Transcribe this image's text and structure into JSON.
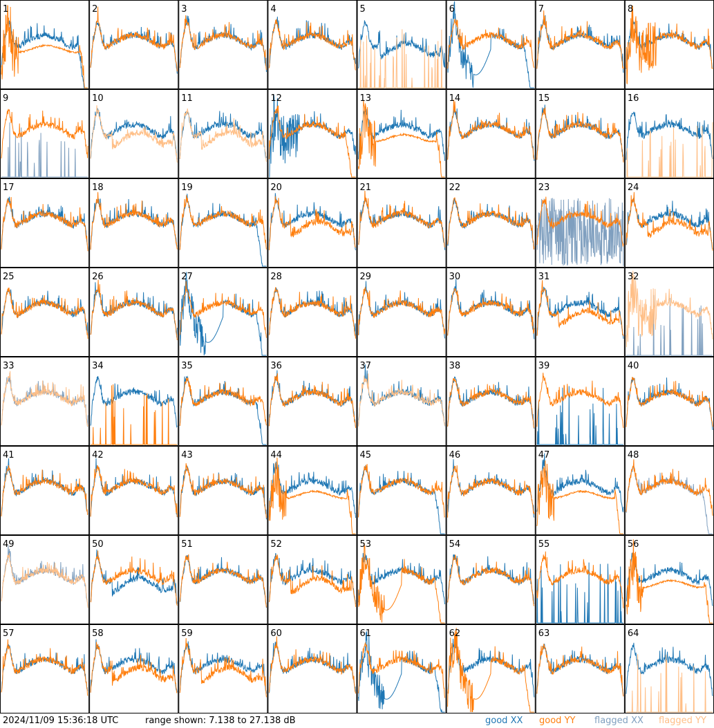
{
  "footer": {
    "timestamp": "2024/11/09 15:36:18 UTC",
    "range_text": "range shown: 7.138 to 27.138 dB"
  },
  "legend": [
    {
      "label": "good",
      "pol": "XX",
      "color": "#1f77b4"
    },
    {
      "label": "good",
      "pol": "YY",
      "color": "#ff7f0e"
    },
    {
      "label": "flagged",
      "pol": "XX",
      "color": "#7f9fbf"
    },
    {
      "label": "flagged",
      "pol": "YY",
      "color": "#ffbf87"
    }
  ],
  "colors": {
    "good_xx": "#1f77b4",
    "good_yy": "#ff7f0e",
    "flagged_xx": "#7f9fbf",
    "flagged_yy": "#ffbf87"
  },
  "chart_data": {
    "type": "line",
    "description_units": "dB",
    "ylim": [
      7.138,
      27.138
    ],
    "panel_layout": {
      "rows": 8,
      "cols": 8
    },
    "panels": [
      {
        "id": "1",
        "xx": {
          "state": "good",
          "shape": "drop"
        },
        "yy": {
          "state": "good",
          "shape": "drop_spiky"
        }
      },
      {
        "id": "2",
        "xx": {
          "state": "good",
          "shape": "normal"
        },
        "yy": {
          "state": "good",
          "shape": "normal"
        }
      },
      {
        "id": "3",
        "xx": {
          "state": "good",
          "shape": "normal"
        },
        "yy": {
          "state": "good",
          "shape": "normal"
        }
      },
      {
        "id": "4",
        "xx": {
          "state": "good",
          "shape": "normal"
        },
        "yy": {
          "state": "good",
          "shape": "normal"
        }
      },
      {
        "id": "5",
        "xx": {
          "state": "good",
          "shape": "low_mid"
        },
        "yy": {
          "state": "flagged",
          "shape": "dead_spikes"
        }
      },
      {
        "id": "6",
        "xx": {
          "state": "good",
          "shape": "deep_dip"
        },
        "yy": {
          "state": "good",
          "shape": "normal"
        }
      },
      {
        "id": "7",
        "xx": {
          "state": "good",
          "shape": "normal"
        },
        "yy": {
          "state": "good",
          "shape": "normal"
        }
      },
      {
        "id": "8",
        "xx": {
          "state": "good",
          "shape": "normal"
        },
        "yy": {
          "state": "good",
          "shape": "spiky_left"
        }
      },
      {
        "id": "9",
        "xx": {
          "state": "flagged",
          "shape": "dead_spikes"
        },
        "yy": {
          "state": "good",
          "shape": "normal"
        }
      },
      {
        "id": "10",
        "xx": {
          "state": "good",
          "shape": "normal"
        },
        "yy": {
          "state": "flagged",
          "shape": "low_mid"
        }
      },
      {
        "id": "11",
        "xx": {
          "state": "good",
          "shape": "normal"
        },
        "yy": {
          "state": "flagged",
          "shape": "low_mid"
        }
      },
      {
        "id": "12",
        "xx": {
          "state": "good",
          "shape": "spiky_left"
        },
        "yy": {
          "state": "good",
          "shape": "drop"
        }
      },
      {
        "id": "13",
        "xx": {
          "state": "good",
          "shape": "normal"
        },
        "yy": {
          "state": "good",
          "shape": "drop_spiky"
        }
      },
      {
        "id": "14",
        "xx": {
          "state": "good",
          "shape": "normal"
        },
        "yy": {
          "state": "good",
          "shape": "normal"
        }
      },
      {
        "id": "15",
        "xx": {
          "state": "good",
          "shape": "normal"
        },
        "yy": {
          "state": "good",
          "shape": "normal"
        }
      },
      {
        "id": "16",
        "xx": {
          "state": "good",
          "shape": "normal"
        },
        "yy": {
          "state": "flagged",
          "shape": "dead_spikes"
        }
      },
      {
        "id": "17",
        "xx": {
          "state": "good",
          "shape": "normal"
        },
        "yy": {
          "state": "good",
          "shape": "normal"
        }
      },
      {
        "id": "18",
        "xx": {
          "state": "good",
          "shape": "normal"
        },
        "yy": {
          "state": "good",
          "shape": "normal"
        }
      },
      {
        "id": "19",
        "xx": {
          "state": "good",
          "shape": "drop"
        },
        "yy": {
          "state": "good",
          "shape": "normal"
        }
      },
      {
        "id": "20",
        "xx": {
          "state": "good",
          "shape": "normal"
        },
        "yy": {
          "state": "good",
          "shape": "low_mid"
        }
      },
      {
        "id": "21",
        "xx": {
          "state": "good",
          "shape": "normal"
        },
        "yy": {
          "state": "good",
          "shape": "normal"
        }
      },
      {
        "id": "22",
        "xx": {
          "state": "good",
          "shape": "normal"
        },
        "yy": {
          "state": "good",
          "shape": "normal"
        }
      },
      {
        "id": "23",
        "xx": {
          "state": "flagged",
          "shape": "noise"
        },
        "yy": {
          "state": "good",
          "shape": "normal"
        }
      },
      {
        "id": "24",
        "xx": {
          "state": "good",
          "shape": "normal"
        },
        "yy": {
          "state": "good",
          "shape": "low_mid"
        }
      },
      {
        "id": "25",
        "xx": {
          "state": "good",
          "shape": "normal"
        },
        "yy": {
          "state": "good",
          "shape": "normal"
        }
      },
      {
        "id": "26",
        "xx": {
          "state": "good",
          "shape": "normal"
        },
        "yy": {
          "state": "good",
          "shape": "normal"
        }
      },
      {
        "id": "27",
        "xx": {
          "state": "good",
          "shape": "deep_dip"
        },
        "yy": {
          "state": "good",
          "shape": "normal"
        }
      },
      {
        "id": "28",
        "xx": {
          "state": "good",
          "shape": "normal"
        },
        "yy": {
          "state": "good",
          "shape": "normal"
        }
      },
      {
        "id": "29",
        "xx": {
          "state": "good",
          "shape": "normal"
        },
        "yy": {
          "state": "good",
          "shape": "normal"
        }
      },
      {
        "id": "30",
        "xx": {
          "state": "good",
          "shape": "normal"
        },
        "yy": {
          "state": "good",
          "shape": "normal"
        }
      },
      {
        "id": "31",
        "xx": {
          "state": "good",
          "shape": "normal"
        },
        "yy": {
          "state": "good",
          "shape": "low_mid"
        }
      },
      {
        "id": "32",
        "xx": {
          "state": "flagged",
          "shape": "dead_spikes"
        },
        "yy": {
          "state": "flagged",
          "shape": "spiky_left"
        }
      },
      {
        "id": "33",
        "xx": {
          "state": "flagged",
          "shape": "normal"
        },
        "yy": {
          "state": "flagged",
          "shape": "normal"
        }
      },
      {
        "id": "34",
        "xx": {
          "state": "good",
          "shape": "normal"
        },
        "yy": {
          "state": "good",
          "shape": "dead_spikes"
        }
      },
      {
        "id": "35",
        "xx": {
          "state": "good",
          "shape": "drop"
        },
        "yy": {
          "state": "good",
          "shape": "normal"
        }
      },
      {
        "id": "36",
        "xx": {
          "state": "good",
          "shape": "normal"
        },
        "yy": {
          "state": "good",
          "shape": "normal"
        }
      },
      {
        "id": "37",
        "xx": {
          "state": "good",
          "shape": "normal"
        },
        "yy": {
          "state": "flagged",
          "shape": "normal"
        }
      },
      {
        "id": "38",
        "xx": {
          "state": "good",
          "shape": "normal"
        },
        "yy": {
          "state": "good",
          "shape": "normal"
        }
      },
      {
        "id": "39",
        "xx": {
          "state": "good",
          "shape": "dead_spikes"
        },
        "yy": {
          "state": "good",
          "shape": "normal"
        }
      },
      {
        "id": "40",
        "xx": {
          "state": "good",
          "shape": "normal"
        },
        "yy": {
          "state": "good",
          "shape": "normal"
        }
      },
      {
        "id": "41",
        "xx": {
          "state": "good",
          "shape": "normal"
        },
        "yy": {
          "state": "good",
          "shape": "normal"
        }
      },
      {
        "id": "42",
        "xx": {
          "state": "good",
          "shape": "normal"
        },
        "yy": {
          "state": "good",
          "shape": "normal"
        }
      },
      {
        "id": "43",
        "xx": {
          "state": "good",
          "shape": "normal"
        },
        "yy": {
          "state": "good",
          "shape": "normal"
        }
      },
      {
        "id": "44",
        "xx": {
          "state": "good",
          "shape": "normal"
        },
        "yy": {
          "state": "good",
          "shape": "drop_spiky"
        }
      },
      {
        "id": "45",
        "xx": {
          "state": "good",
          "shape": "drop"
        },
        "yy": {
          "state": "good",
          "shape": "normal"
        }
      },
      {
        "id": "46",
        "xx": {
          "state": "good",
          "shape": "normal"
        },
        "yy": {
          "state": "good",
          "shape": "normal"
        }
      },
      {
        "id": "47",
        "xx": {
          "state": "good",
          "shape": "normal"
        },
        "yy": {
          "state": "good",
          "shape": "drop_spiky"
        }
      },
      {
        "id": "48",
        "xx": {
          "state": "flagged",
          "shape": "drop"
        },
        "yy": {
          "state": "good",
          "shape": "normal"
        }
      },
      {
        "id": "49",
        "xx": {
          "state": "flagged",
          "shape": "normal"
        },
        "yy": {
          "state": "flagged",
          "shape": "normal"
        }
      },
      {
        "id": "50",
        "xx": {
          "state": "good",
          "shape": "low_mid"
        },
        "yy": {
          "state": "good",
          "shape": "normal"
        }
      },
      {
        "id": "51",
        "xx": {
          "state": "good",
          "shape": "normal"
        },
        "yy": {
          "state": "good",
          "shape": "normal"
        }
      },
      {
        "id": "52",
        "xx": {
          "state": "good",
          "shape": "normal"
        },
        "yy": {
          "state": "good",
          "shape": "low_mid"
        }
      },
      {
        "id": "53",
        "xx": {
          "state": "good",
          "shape": "normal"
        },
        "yy": {
          "state": "good",
          "shape": "deep_dip"
        }
      },
      {
        "id": "54",
        "xx": {
          "state": "good",
          "shape": "normal"
        },
        "yy": {
          "state": "good",
          "shape": "normal"
        }
      },
      {
        "id": "55",
        "xx": {
          "state": "good",
          "shape": "dead_spikes"
        },
        "yy": {
          "state": "good",
          "shape": "normal"
        }
      },
      {
        "id": "56",
        "xx": {
          "state": "good",
          "shape": "normal"
        },
        "yy": {
          "state": "good",
          "shape": "drop_spiky"
        }
      },
      {
        "id": "57",
        "xx": {
          "state": "good",
          "shape": "normal"
        },
        "yy": {
          "state": "good",
          "shape": "normal"
        }
      },
      {
        "id": "58",
        "xx": {
          "state": "good",
          "shape": "normal"
        },
        "yy": {
          "state": "good",
          "shape": "low_mid"
        }
      },
      {
        "id": "59",
        "xx": {
          "state": "good",
          "shape": "normal"
        },
        "yy": {
          "state": "good",
          "shape": "low_mid"
        }
      },
      {
        "id": "60",
        "xx": {
          "state": "good",
          "shape": "normal"
        },
        "yy": {
          "state": "good",
          "shape": "normal"
        }
      },
      {
        "id": "61",
        "xx": {
          "state": "good",
          "shape": "deep_dip"
        },
        "yy": {
          "state": "good",
          "shape": "normal"
        }
      },
      {
        "id": "62",
        "xx": {
          "state": "good",
          "shape": "normal"
        },
        "yy": {
          "state": "good",
          "shape": "deep_dip"
        }
      },
      {
        "id": "63",
        "xx": {
          "state": "good",
          "shape": "normal"
        },
        "yy": {
          "state": "good",
          "shape": "normal"
        }
      },
      {
        "id": "64",
        "xx": {
          "state": "good",
          "shape": "normal"
        },
        "yy": {
          "state": "flagged",
          "shape": "dead_spikes"
        }
      }
    ]
  }
}
